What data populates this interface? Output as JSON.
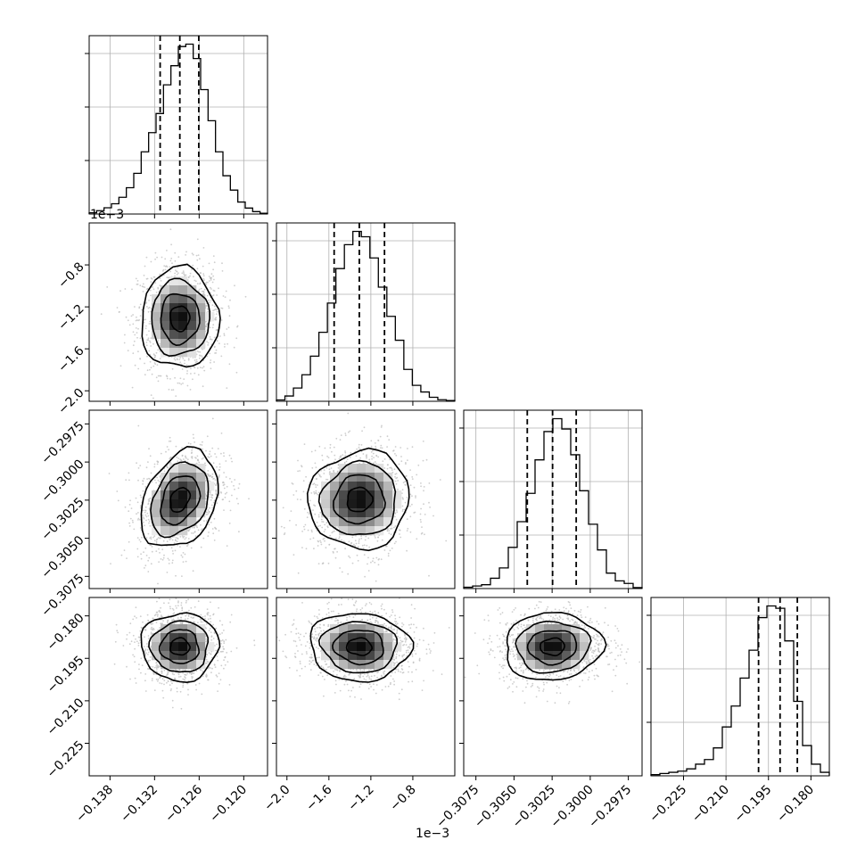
{
  "chart_data": {
    "type": "corner",
    "grid": true,
    "params": [
      {
        "range": [
          -0.1408,
          -0.1168
        ],
        "ticks": [
          -0.138,
          -0.132,
          -0.126,
          -0.12
        ],
        "tick_labels": [
          "−0.138",
          "−0.132",
          "−0.126",
          "−0.120"
        ],
        "offset_text": "",
        "hist": [
          0.05,
          0.14,
          0.26,
          0.43,
          0.7,
          1.1,
          1.7,
          2.6,
          3.4,
          4.2,
          5.4,
          6.2,
          7,
          7.1,
          6.5,
          5.2,
          3.9,
          2.6,
          1.6,
          1.0,
          0.5,
          0.25,
          0.1,
          0.03
        ],
        "quantiles": [
          -0.13125,
          -0.1286,
          -0.12605
        ]
      },
      {
        "range": [
          -0.0021,
          -0.0004
        ],
        "ticks": [
          -0.002,
          -0.0016,
          -0.0012,
          -0.0008
        ],
        "tick_labels": [
          "−2.0",
          "−1.6",
          "−1.2",
          "−0.8"
        ],
        "offset_text": "1e−3",
        "hist": [
          0.05,
          0.2,
          0.5,
          1.0,
          1.7,
          2.6,
          3.7,
          5.0,
          5.9,
          6.4,
          6.2,
          5.4,
          4.3,
          3.2,
          2.3,
          1.2,
          0.6,
          0.35,
          0.15,
          0.06,
          0.03
        ],
        "quantiles": [
          -0.00155,
          -0.00131,
          -0.00107
        ]
      },
      {
        "range": [
          -0.3083,
          -0.2966
        ],
        "ticks": [
          -0.3075,
          -0.305,
          -0.3025,
          -0.3,
          -0.2975
        ],
        "tick_labels": [
          "−0.3075",
          "−0.3050",
          "−0.3025",
          "−0.3000",
          "−0.2975"
        ],
        "offset_text": "",
        "hist": [
          0.05,
          0.1,
          0.15,
          0.4,
          0.8,
          1.6,
          2.6,
          3.7,
          5.0,
          6.1,
          6.6,
          6.2,
          5.2,
          3.8,
          2.5,
          1.5,
          0.6,
          0.3,
          0.2,
          0.04
        ],
        "quantiles": [
          -0.30413,
          -0.30247,
          -0.30092
        ]
      },
      {
        "range": [
          -0.2365,
          -0.1735
        ],
        "ticks": [
          -0.225,
          -0.21,
          -0.195,
          -0.18
        ],
        "tick_labels": [
          "−0.225",
          "−0.210",
          "−0.195",
          "−0.180"
        ],
        "offset_text": "",
        "hist": [
          0.05,
          0.1,
          0.15,
          0.2,
          0.3,
          0.5,
          0.7,
          1.2,
          2.1,
          3.0,
          4.2,
          5.4,
          6.8,
          7.3,
          7.2,
          5.8,
          3.2,
          1.3,
          0.5,
          0.15
        ],
        "quantiles": [
          -0.1985,
          -0.1909,
          -0.1848
        ]
      }
    ],
    "axis_labels": [],
    "offset_texts": [
      "1e−3",
      "1e−3"
    ],
    "pair_panels": [
      {
        "row": 1,
        "col": 0,
        "corr": 0.0
      },
      {
        "row": 2,
        "col": 0,
        "corr": 0.3
      },
      {
        "row": 2,
        "col": 1,
        "corr": 0.05
      },
      {
        "row": 3,
        "col": 0,
        "corr": 0.0
      },
      {
        "row": 3,
        "col": 1,
        "corr": -0.05
      },
      {
        "row": 3,
        "col": 2,
        "corr": 0.05
      }
    ],
    "means": [
      -0.1286,
      -0.00131,
      -0.30247,
      -0.1909
    ],
    "sigmas": [
      0.0026,
      0.00024,
      0.0016,
      0.006
    ],
    "colors": {
      "line": "#000000",
      "grid": "#b0b0b0",
      "scatter": "#bdbdbd",
      "frame": "#000000"
    }
  }
}
